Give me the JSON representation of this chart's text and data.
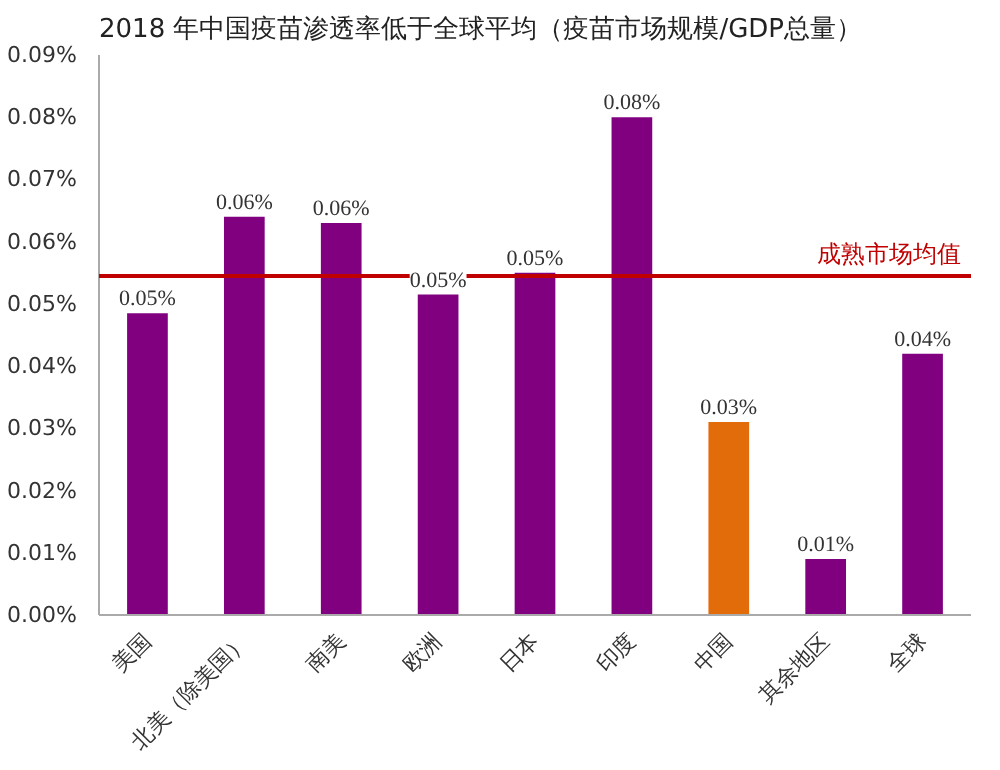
{
  "chart_data": {
    "type": "bar",
    "title": "2018 年中国疫苗渗透率低于全球平均（疫苗市场规模/GDP总量）",
    "categories": [
      "美国",
      "北美（除美国）",
      "南美",
      "欧洲",
      "日本",
      "印度",
      "中国",
      "其余地区",
      "全球"
    ],
    "values": [
      0.0485,
      0.064,
      0.063,
      0.0515,
      0.055,
      0.08,
      0.031,
      0.009,
      0.042
    ],
    "colors": [
      "#800080",
      "#800080",
      "#800080",
      "#800080",
      "#800080",
      "#800080",
      "#e36c0a",
      "#800080",
      "#800080"
    ],
    "value_labels": [
      "0.05%",
      "0.06%",
      "0.06%",
      "0.05%",
      "0.05%",
      "0.08%",
      "0.03%",
      "0.01%",
      "0.04%"
    ],
    "ylim": [
      0,
      0.09
    ],
    "yticks": [
      {
        "value": 0,
        "label": "0.00%"
      },
      {
        "value": 0.01,
        "label": "0.01%"
      },
      {
        "value": 0.02,
        "label": "0.02%"
      },
      {
        "value": 0.03,
        "label": "0.03%"
      },
      {
        "value": 0.04,
        "label": "0.04%"
      },
      {
        "value": 0.05,
        "label": "0.05%"
      },
      {
        "value": 0.06,
        "label": "0.06%"
      },
      {
        "value": 0.07,
        "label": "0.07%"
      },
      {
        "value": 0.08,
        "label": "0.08%"
      },
      {
        "value": 0.09,
        "label": "0.09%"
      }
    ],
    "ref_lines": [
      {
        "axis": "y",
        "value": 0.0545,
        "label": "成熟市场均值",
        "color": "#c00000"
      }
    ],
    "grid": false
  }
}
